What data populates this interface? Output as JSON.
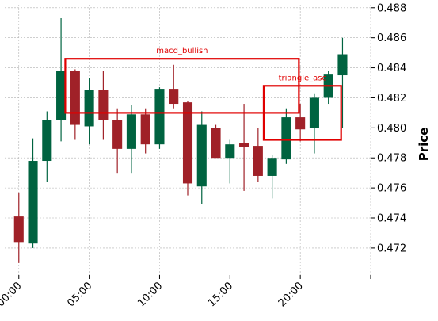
{
  "chart_data": {
    "type": "candlestick",
    "ylabel": "Price",
    "ylim": [
      0.4702,
      0.4882
    ],
    "xlim": [
      -1,
      25
    ],
    "y_ticks": [
      0.472,
      0.474,
      0.476,
      0.478,
      0.48,
      0.482,
      0.484,
      0.486,
      0.488
    ],
    "y_tick_labels": [
      "0.472",
      "0.474",
      "0.476",
      "0.478",
      "0.480",
      "0.482",
      "0.484",
      "0.486",
      "0.488"
    ],
    "x_ticks": [
      0,
      5,
      10,
      15,
      20,
      25
    ],
    "x_tick_labels": [
      "00:00",
      "05:00",
      "10:00",
      "15:00",
      "20:00",
      ""
    ],
    "grid": true,
    "up_color": "#006340",
    "down_color": "#a02128",
    "candles": [
      {
        "o": 0.4741,
        "h": 0.4757,
        "l": 0.471,
        "c": 0.4724
      },
      {
        "o": 0.4723,
        "h": 0.4793,
        "l": 0.472,
        "c": 0.4778
      },
      {
        "o": 0.4778,
        "h": 0.4811,
        "l": 0.4764,
        "c": 0.4805
      },
      {
        "o": 0.4805,
        "h": 0.4873,
        "l": 0.4791,
        "c": 0.4838
      },
      {
        "o": 0.4838,
        "h": 0.4839,
        "l": 0.4792,
        "c": 0.4802
      },
      {
        "o": 0.4801,
        "h": 0.4833,
        "l": 0.4789,
        "c": 0.4825
      },
      {
        "o": 0.4825,
        "h": 0.4838,
        "l": 0.4792,
        "c": 0.4805
      },
      {
        "o": 0.4805,
        "h": 0.4813,
        "l": 0.477,
        "c": 0.4786
      },
      {
        "o": 0.4786,
        "h": 0.4815,
        "l": 0.477,
        "c": 0.4809
      },
      {
        "o": 0.4809,
        "h": 0.4813,
        "l": 0.4783,
        "c": 0.4789
      },
      {
        "o": 0.4789,
        "h": 0.4827,
        "l": 0.4786,
        "c": 0.4826
      },
      {
        "o": 0.4826,
        "h": 0.4842,
        "l": 0.4813,
        "c": 0.4816
      },
      {
        "o": 0.4817,
        "h": 0.4818,
        "l": 0.4755,
        "c": 0.4763
      },
      {
        "o": 0.4761,
        "h": 0.4811,
        "l": 0.4749,
        "c": 0.4802
      },
      {
        "o": 0.48,
        "h": 0.4802,
        "l": 0.478,
        "c": 0.478
      },
      {
        "o": 0.478,
        "h": 0.4792,
        "l": 0.4763,
        "c": 0.4789
      },
      {
        "o": 0.479,
        "h": 0.4816,
        "l": 0.4758,
        "c": 0.4787
      },
      {
        "o": 0.4788,
        "h": 0.48,
        "l": 0.4764,
        "c": 0.4768
      },
      {
        "o": 0.4768,
        "h": 0.4782,
        "l": 0.4753,
        "c": 0.478
      },
      {
        "o": 0.4779,
        "h": 0.4813,
        "l": 0.4776,
        "c": 0.4807
      },
      {
        "o": 0.4807,
        "h": 0.4816,
        "l": 0.4791,
        "c": 0.4799
      },
      {
        "o": 0.48,
        "h": 0.4823,
        "l": 0.4783,
        "c": 0.482
      },
      {
        "o": 0.482,
        "h": 0.4838,
        "l": 0.4816,
        "c": 0.4836
      },
      {
        "o": 0.4835,
        "h": 0.486,
        "l": 0.48,
        "c": 0.4849
      }
    ],
    "annotations": [
      {
        "label": "macd_bullish",
        "x0": 3.3,
        "x1": 19.9,
        "y0": 0.481,
        "y1": 0.4846
      },
      {
        "label": "triangle_asc",
        "x0": 17.4,
        "x1": 22.9,
        "y0": 0.4792,
        "y1": 0.4828
      }
    ],
    "annotation_color": "#e00000"
  }
}
